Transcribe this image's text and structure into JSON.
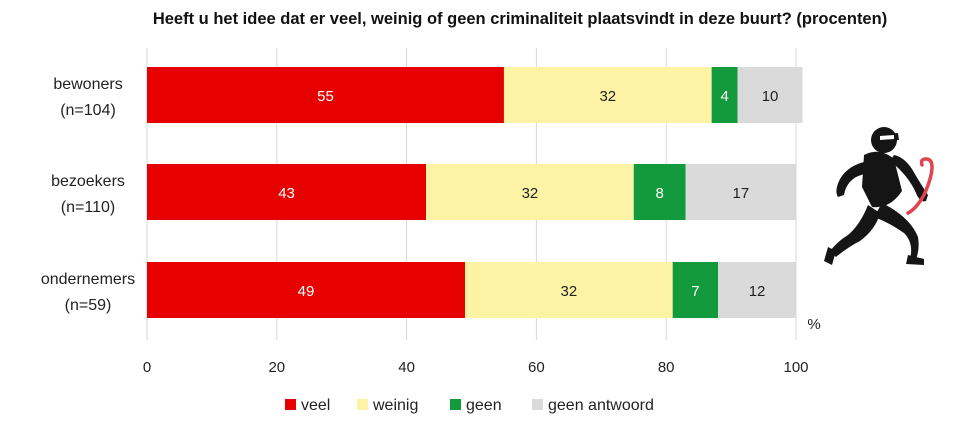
{
  "chart_data": {
    "type": "bar",
    "orientation": "horizontal",
    "stacked": true,
    "title": "Heeft u het idee dat er veel, weinig of geen criminaliteit plaatsvindt in deze buurt? (procenten)",
    "categories": [
      {
        "name": "bewoners",
        "n": "(n=104)"
      },
      {
        "name": "bezoekers",
        "n": "(n=110)"
      },
      {
        "name": "ondernemers",
        "n": "(n=59)"
      }
    ],
    "series": [
      {
        "name": "veel",
        "color": "#e60000",
        "label_color": "#ffffff",
        "values": [
          55,
          43,
          49
        ]
      },
      {
        "name": "weinig",
        "color": "#fdf3a5",
        "label_color": "#222222",
        "values": [
          32,
          32,
          32
        ]
      },
      {
        "name": "geen",
        "color": "#139a3c",
        "label_color": "#ffffff",
        "values": [
          4,
          8,
          7
        ]
      },
      {
        "name": "geen antwoord",
        "color": "#dadada",
        "label_color": "#222222",
        "values": [
          10,
          17,
          12
        ]
      }
    ],
    "xlim": [
      0,
      100
    ],
    "xticks": [
      0,
      20,
      40,
      60,
      80,
      100
    ],
    "xunit": "%",
    "grid": true,
    "legend": "bottom"
  },
  "icons": {
    "illustration": "burglar-with-crowbar-icon"
  }
}
